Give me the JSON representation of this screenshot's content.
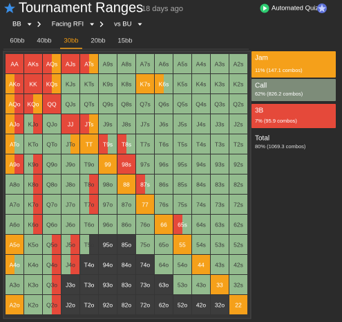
{
  "header": {
    "title": "Tournament Ranges",
    "age": "18 days ago",
    "quiz_button": "Automated Quiz"
  },
  "filters": [
    "BB",
    "Facing RFI",
    "vs BU"
  ],
  "tabs": {
    "items": [
      "60bb",
      "40bb",
      "30bb",
      "20bb",
      "15bb"
    ],
    "selected": 2,
    "selected_color": "#f39c12"
  },
  "grid": [
    [
      {
        "label": "AA",
        "colors": [
          "#e5493a"
        ]
      },
      {
        "label": "AKs",
        "colors": [
          "#e5493a"
        ]
      },
      {
        "label": "AQs",
        "colors": [
          "#e5493a",
          "#f5a01a"
        ]
      },
      {
        "label": "AJs",
        "colors": [
          "#e5493a"
        ]
      },
      {
        "label": "ATs",
        "colors": [
          "#e5493a",
          "#f5a01a"
        ]
      },
      {
        "label": "A9s",
        "colors": [
          "#93bb8e"
        ]
      },
      {
        "label": "A8s",
        "colors": [
          "#93bb8e"
        ]
      },
      {
        "label": "A7s",
        "colors": [
          "#93bb8e"
        ]
      },
      {
        "label": "A6s",
        "colors": [
          "#93bb8e"
        ]
      },
      {
        "label": "A5s",
        "colors": [
          "#93bb8e"
        ]
      },
      {
        "label": "A4s",
        "colors": [
          "#93bb8e"
        ]
      },
      {
        "label": "A3s",
        "colors": [
          "#93bb8e"
        ]
      },
      {
        "label": "A2s",
        "colors": [
          "#93bb8e"
        ]
      }
    ],
    [
      {
        "label": "AKo",
        "colors": [
          "#f5a01a",
          "#e5493a"
        ]
      },
      {
        "label": "KK",
        "colors": [
          "#e5493a"
        ]
      },
      {
        "label": "KQs",
        "colors": [
          "#e5493a",
          "#f5a01a"
        ]
      },
      {
        "label": "KJs",
        "colors": [
          "#93bb8e"
        ]
      },
      {
        "label": "KTs",
        "colors": [
          "#93bb8e"
        ]
      },
      {
        "label": "K9s",
        "colors": [
          "#93bb8e"
        ]
      },
      {
        "label": "K8s",
        "colors": [
          "#93bb8e"
        ]
      },
      {
        "label": "K7s",
        "colors": [
          "#f5a01a"
        ]
      },
      {
        "label": "K6s",
        "colors": [
          "#f5a01a",
          "#93bb8e"
        ]
      },
      {
        "label": "K5s",
        "colors": [
          "#93bb8e"
        ]
      },
      {
        "label": "K4s",
        "colors": [
          "#93bb8e"
        ]
      },
      {
        "label": "K3s",
        "colors": [
          "#93bb8e"
        ]
      },
      {
        "label": "K2s",
        "colors": [
          "#93bb8e"
        ]
      }
    ],
    [
      {
        "label": "AQo",
        "colors": [
          "#f5a01a",
          "#e5493a"
        ]
      },
      {
        "label": "KQo",
        "colors": [
          "#e5493a",
          "#f5a01a"
        ]
      },
      {
        "label": "QQ",
        "colors": [
          "#e5493a"
        ]
      },
      {
        "label": "QJs",
        "colors": [
          "#93bb8e"
        ]
      },
      {
        "label": "QTs",
        "colors": [
          "#93bb8e"
        ]
      },
      {
        "label": "Q9s",
        "colors": [
          "#93bb8e"
        ]
      },
      {
        "label": "Q8s",
        "colors": [
          "#93bb8e"
        ]
      },
      {
        "label": "Q7s",
        "colors": [
          "#93bb8e"
        ]
      },
      {
        "label": "Q6s",
        "colors": [
          "#93bb8e"
        ]
      },
      {
        "label": "Q5s",
        "colors": [
          "#93bb8e"
        ]
      },
      {
        "label": "Q4s",
        "colors": [
          "#93bb8e"
        ]
      },
      {
        "label": "Q3s",
        "colors": [
          "#93bb8e"
        ]
      },
      {
        "label": "Q2s",
        "colors": [
          "#93bb8e"
        ]
      }
    ],
    [
      {
        "label": "AJo",
        "colors": [
          "#f5a01a",
          "#e5493a"
        ]
      },
      {
        "label": "KJo",
        "colors": [
          "#93bb8e",
          "#e5493a"
        ]
      },
      {
        "label": "QJo",
        "colors": [
          "#93bb8e"
        ]
      },
      {
        "label": "JJ",
        "colors": [
          "#e5493a"
        ]
      },
      {
        "label": "JTs",
        "colors": [
          "#e5493a",
          "#f5a01a"
        ]
      },
      {
        "label": "J9s",
        "colors": [
          "#93bb8e"
        ]
      },
      {
        "label": "J8s",
        "colors": [
          "#93bb8e"
        ]
      },
      {
        "label": "J7s",
        "colors": [
          "#93bb8e"
        ]
      },
      {
        "label": "J6s",
        "colors": [
          "#93bb8e"
        ]
      },
      {
        "label": "J5s",
        "colors": [
          "#93bb8e"
        ]
      },
      {
        "label": "J4s",
        "colors": [
          "#93bb8e"
        ]
      },
      {
        "label": "J3s",
        "colors": [
          "#93bb8e"
        ]
      },
      {
        "label": "J2s",
        "colors": [
          "#93bb8e"
        ]
      }
    ],
    [
      {
        "label": "ATo",
        "colors": [
          "#f5a01a",
          "#93bb8e"
        ]
      },
      {
        "label": "KTo",
        "colors": [
          "#93bb8e"
        ]
      },
      {
        "label": "QTo",
        "colors": [
          "#93bb8e"
        ]
      },
      {
        "label": "JTo",
        "colors": [
          "#93bb8e",
          "#f5a01a"
        ]
      },
      {
        "label": "TT",
        "colors": [
          "#f5a01a"
        ]
      },
      {
        "label": "T9s",
        "colors": [
          "#e5493a",
          "#93bb8e"
        ]
      },
      {
        "label": "T8s",
        "colors": [
          "#e5493a",
          "#93bb8e"
        ]
      },
      {
        "label": "T7s",
        "colors": [
          "#93bb8e"
        ]
      },
      {
        "label": "T6s",
        "colors": [
          "#93bb8e"
        ]
      },
      {
        "label": "T5s",
        "colors": [
          "#93bb8e"
        ]
      },
      {
        "label": "T4s",
        "colors": [
          "#93bb8e"
        ]
      },
      {
        "label": "T3s",
        "colors": [
          "#93bb8e"
        ]
      },
      {
        "label": "T2s",
        "colors": [
          "#93bb8e"
        ]
      }
    ],
    [
      {
        "label": "A9o",
        "colors": [
          "#f5a01a",
          "#e5493a"
        ]
      },
      {
        "label": "K9o",
        "colors": [
          "#93bb8e",
          "#e5493a"
        ]
      },
      {
        "label": "Q9o",
        "colors": [
          "#93bb8e"
        ]
      },
      {
        "label": "J9o",
        "colors": [
          "#93bb8e"
        ]
      },
      {
        "label": "T9o",
        "colors": [
          "#93bb8e"
        ]
      },
      {
        "label": "99",
        "colors": [
          "#f5a01a"
        ]
      },
      {
        "label": "98s",
        "colors": [
          "#e5493a"
        ]
      },
      {
        "label": "97s",
        "colors": [
          "#93bb8e"
        ]
      },
      {
        "label": "96s",
        "colors": [
          "#93bb8e"
        ]
      },
      {
        "label": "95s",
        "colors": [
          "#93bb8e"
        ]
      },
      {
        "label": "94s",
        "colors": [
          "#93bb8e"
        ]
      },
      {
        "label": "93s",
        "colors": [
          "#93bb8e"
        ]
      },
      {
        "label": "92s",
        "colors": [
          "#93bb8e"
        ]
      }
    ],
    [
      {
        "label": "A8o",
        "colors": [
          "#93bb8e"
        ]
      },
      {
        "label": "K8o",
        "colors": [
          "#93bb8e",
          "#e5493a"
        ]
      },
      {
        "label": "Q8o",
        "colors": [
          "#93bb8e"
        ]
      },
      {
        "label": "J8o",
        "colors": [
          "#93bb8e"
        ]
      },
      {
        "label": "T8o",
        "colors": [
          "#93bb8e",
          "#e5493a"
        ]
      },
      {
        "label": "98o",
        "colors": [
          "#93bb8e"
        ]
      },
      {
        "label": "88",
        "colors": [
          "#f5a01a"
        ]
      },
      {
        "label": "87s",
        "colors": [
          "#e5493a",
          "#93bb8e"
        ]
      },
      {
        "label": "86s",
        "colors": [
          "#93bb8e"
        ]
      },
      {
        "label": "85s",
        "colors": [
          "#93bb8e"
        ]
      },
      {
        "label": "84s",
        "colors": [
          "#93bb8e"
        ]
      },
      {
        "label": "83s",
        "colors": [
          "#93bb8e"
        ]
      },
      {
        "label": "82s",
        "colors": [
          "#93bb8e"
        ]
      }
    ],
    [
      {
        "label": "A7o",
        "colors": [
          "#93bb8e"
        ]
      },
      {
        "label": "K7o",
        "colors": [
          "#93bb8e",
          "#e5493a"
        ]
      },
      {
        "label": "Q7o",
        "colors": [
          "#93bb8e"
        ]
      },
      {
        "label": "J7o",
        "colors": [
          "#93bb8e"
        ]
      },
      {
        "label": "T7o",
        "colors": [
          "#93bb8e",
          "#e5493a"
        ]
      },
      {
        "label": "97o",
        "colors": [
          "#93bb8e"
        ]
      },
      {
        "label": "87o",
        "colors": [
          "#93bb8e"
        ]
      },
      {
        "label": "77",
        "colors": [
          "#f5a01a"
        ]
      },
      {
        "label": "76s",
        "colors": [
          "#93bb8e"
        ]
      },
      {
        "label": "75s",
        "colors": [
          "#93bb8e"
        ]
      },
      {
        "label": "74s",
        "colors": [
          "#93bb8e"
        ]
      },
      {
        "label": "73s",
        "colors": [
          "#93bb8e"
        ]
      },
      {
        "label": "72s",
        "colors": [
          "#93bb8e"
        ]
      }
    ],
    [
      {
        "label": "A6o",
        "colors": [
          "#93bb8e"
        ]
      },
      {
        "label": "K6o",
        "colors": [
          "#93bb8e",
          "#e5493a"
        ]
      },
      {
        "label": "Q6o",
        "colors": [
          "#93bb8e"
        ]
      },
      {
        "label": "J6o",
        "colors": [
          "#93bb8e"
        ]
      },
      {
        "label": "T6o",
        "colors": [
          "#93bb8e"
        ]
      },
      {
        "label": "96o",
        "colors": [
          "#93bb8e"
        ]
      },
      {
        "label": "86o",
        "colors": [
          "#93bb8e"
        ]
      },
      {
        "label": "76o",
        "colors": [
          "#93bb8e"
        ]
      },
      {
        "label": "66",
        "colors": [
          "#f5a01a"
        ]
      },
      {
        "label": "65s",
        "colors": [
          "#e5493a",
          "#93bb8e"
        ]
      },
      {
        "label": "64s",
        "colors": [
          "#93bb8e"
        ]
      },
      {
        "label": "63s",
        "colors": [
          "#93bb8e"
        ]
      },
      {
        "label": "62s",
        "colors": [
          "#93bb8e"
        ]
      }
    ],
    [
      {
        "label": "A5o",
        "colors": [
          "#f5a01a"
        ]
      },
      {
        "label": "K5o",
        "colors": [
          "#93bb8e"
        ]
      },
      {
        "label": "Q5o",
        "colors": [
          "#93bb8e",
          "#e5493a"
        ]
      },
      {
        "label": "J5o",
        "colors": [
          "#93bb8e",
          "#e5493a"
        ]
      },
      {
        "label": "T5o",
        "colors": [
          "#93bb8e",
          "#3d3d3d"
        ]
      },
      {
        "label": "95o",
        "colors": [
          "#3d3d3d"
        ]
      },
      {
        "label": "85o",
        "colors": [
          "#3d3d3d"
        ]
      },
      {
        "label": "75o",
        "colors": [
          "#93bb8e"
        ]
      },
      {
        "label": "65o",
        "colors": [
          "#93bb8e"
        ]
      },
      {
        "label": "55",
        "colors": [
          "#f5a01a"
        ]
      },
      {
        "label": "54s",
        "colors": [
          "#93bb8e"
        ]
      },
      {
        "label": "53s",
        "colors": [
          "#93bb8e"
        ]
      },
      {
        "label": "52s",
        "colors": [
          "#93bb8e"
        ]
      }
    ],
    [
      {
        "label": "A4o",
        "colors": [
          "#f5a01a",
          "#93bb8e"
        ]
      },
      {
        "label": "K4o",
        "colors": [
          "#93bb8e"
        ]
      },
      {
        "label": "Q4o",
        "colors": [
          "#93bb8e",
          "#e5493a"
        ]
      },
      {
        "label": "J4o",
        "colors": [
          "#93bb8e",
          "#e5493a"
        ]
      },
      {
        "label": "T4o",
        "colors": [
          "#3d3d3d"
        ]
      },
      {
        "label": "94o",
        "colors": [
          "#3d3d3d"
        ]
      },
      {
        "label": "84o",
        "colors": [
          "#3d3d3d"
        ]
      },
      {
        "label": "74o",
        "colors": [
          "#3d3d3d"
        ]
      },
      {
        "label": "64o",
        "colors": [
          "#93bb8e"
        ]
      },
      {
        "label": "54o",
        "colors": [
          "#93bb8e"
        ]
      },
      {
        "label": "44",
        "colors": [
          "#f5a01a"
        ]
      },
      {
        "label": "43s",
        "colors": [
          "#93bb8e"
        ]
      },
      {
        "label": "42s",
        "colors": [
          "#93bb8e"
        ]
      }
    ],
    [
      {
        "label": "A3o",
        "colors": [
          "#93bb8e"
        ]
      },
      {
        "label": "K3o",
        "colors": [
          "#93bb8e"
        ]
      },
      {
        "label": "Q3o",
        "colors": [
          "#93bb8e",
          "#e5493a"
        ]
      },
      {
        "label": "J3o",
        "colors": [
          "#3d3d3d"
        ]
      },
      {
        "label": "T3o",
        "colors": [
          "#3d3d3d"
        ]
      },
      {
        "label": "93o",
        "colors": [
          "#3d3d3d"
        ]
      },
      {
        "label": "83o",
        "colors": [
          "#3d3d3d"
        ]
      },
      {
        "label": "73o",
        "colors": [
          "#3d3d3d"
        ]
      },
      {
        "label": "63o",
        "colors": [
          "#3d3d3d"
        ]
      },
      {
        "label": "53o",
        "colors": [
          "#93bb8e"
        ]
      },
      {
        "label": "43o",
        "colors": [
          "#93bb8e"
        ]
      },
      {
        "label": "33",
        "colors": [
          "#f5a01a"
        ]
      },
      {
        "label": "32s",
        "colors": [
          "#93bb8e"
        ]
      }
    ],
    [
      {
        "label": "A2o",
        "colors": [
          "#f5a01a"
        ]
      },
      {
        "label": "K2o",
        "colors": [
          "#93bb8e"
        ]
      },
      {
        "label": "Q2o",
        "colors": [
          "#93bb8e",
          "#e5493a"
        ]
      },
      {
        "label": "J2o",
        "colors": [
          "#3d3d3d"
        ]
      },
      {
        "label": "T2o",
        "colors": [
          "#3d3d3d"
        ]
      },
      {
        "label": "92o",
        "colors": [
          "#3d3d3d"
        ]
      },
      {
        "label": "82o",
        "colors": [
          "#3d3d3d"
        ]
      },
      {
        "label": "72o",
        "colors": [
          "#3d3d3d"
        ]
      },
      {
        "label": "62o",
        "colors": [
          "#3d3d3d"
        ]
      },
      {
        "label": "52o",
        "colors": [
          "#3d3d3d"
        ]
      },
      {
        "label": "42o",
        "colors": [
          "#3d3d3d"
        ]
      },
      {
        "label": "32o",
        "colors": [
          "#3d3d3d"
        ]
      },
      {
        "label": "22",
        "colors": [
          "#f5a01a"
        ]
      }
    ]
  ],
  "legend": [
    {
      "name": "Jam",
      "detail": "11% (147.1 combos)",
      "color": "#f5a01a"
    },
    {
      "name": "Call",
      "detail": "62% (826.2 combos)",
      "color": "#7d8c79"
    },
    {
      "name": "3B",
      "detail": "7% (95.9 combos)",
      "color": "#e5493a"
    },
    {
      "name": "Total",
      "detail": "80% (1069.3 combos)"
    }
  ]
}
